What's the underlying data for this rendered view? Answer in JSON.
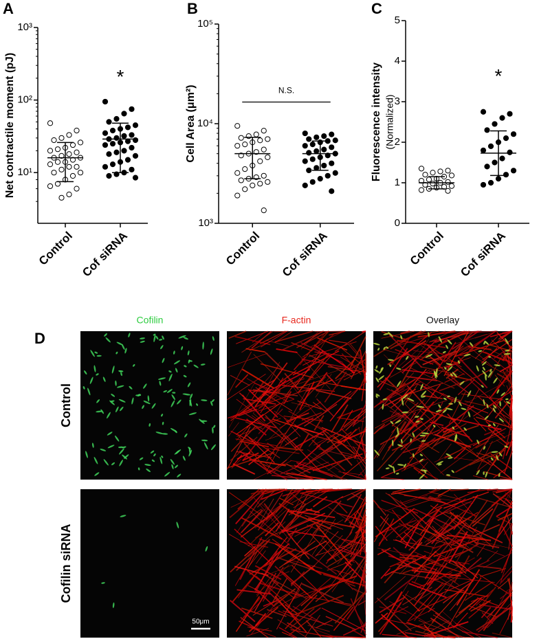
{
  "panels": [
    "A",
    "B",
    "C",
    "D"
  ],
  "chart_data": [
    {
      "type": "dot",
      "ylabel": "Net contractile moment (pJ)",
      "log": true,
      "ylim": [
        2,
        1000
      ],
      "yticks": [
        {
          "value": 10,
          "label": "10¹"
        },
        {
          "value": 100,
          "label": "10²"
        },
        {
          "value": 1000,
          "label": "10³"
        }
      ],
      "categories": [
        "Control",
        "Cof siRNA"
      ],
      "color": "#000000",
      "groups": [
        {
          "filled": false,
          "values": [
            48,
            38,
            33,
            30,
            28,
            26,
            24,
            22,
            21,
            20,
            19,
            18,
            17,
            16,
            16,
            15,
            14,
            14,
            13,
            12,
            12,
            11,
            10,
            10,
            9,
            8,
            7,
            6.5,
            6,
            5,
            4.5
          ],
          "mean": 16,
          "lower": 7.5,
          "upper": 26
        },
        {
          "filled": true,
          "values": [
            95,
            75,
            65,
            55,
            50,
            45,
            42,
            40,
            38,
            35,
            33,
            32,
            30,
            29,
            28,
            27,
            26,
            25,
            24,
            22,
            20,
            19,
            18,
            17,
            15,
            14,
            13,
            12,
            11,
            10,
            9.5,
            9,
            8.5
          ],
          "mean": 29,
          "lower": 10,
          "upper": 48
        }
      ],
      "annotation": {
        "text": "*",
        "category": 1,
        "value": 230
      }
    },
    {
      "type": "dot",
      "ylabel": "Cell Area (μm²)",
      "log": true,
      "ylim": [
        1000,
        100000
      ],
      "yticks": [
        {
          "value": 1000,
          "label": "10³"
        },
        {
          "value": 10000,
          "label": "10⁴"
        },
        {
          "value": 100000,
          "label": "10⁵"
        }
      ],
      "categories": [
        "Control",
        "Cof siRNA"
      ],
      "color": "#000000",
      "groups": [
        {
          "filled": false,
          "values": [
            9500,
            8500,
            7800,
            7500,
            7200,
            7000,
            6800,
            6500,
            6200,
            6000,
            5500,
            5200,
            5000,
            4800,
            4600,
            4200,
            3800,
            3500,
            3200,
            3000,
            2900,
            2800,
            2700,
            2600,
            2500,
            2400,
            2200,
            1900,
            1350
          ],
          "mean": 5000,
          "lower": 2800,
          "upper": 7300
        },
        {
          "filled": true,
          "values": [
            8000,
            7800,
            7500,
            7300,
            7000,
            6800,
            6700,
            6500,
            6200,
            6000,
            5800,
            5500,
            5300,
            5100,
            5000,
            4800,
            4600,
            4400,
            4200,
            4000,
            3800,
            3600,
            3400,
            3200,
            3000,
            2800,
            2600,
            2400,
            2100
          ],
          "mean": 5000,
          "lower": 3400,
          "upper": 6700
        }
      ],
      "bracket": {
        "text": "N.S.",
        "value": 16500
      }
    },
    {
      "type": "dot",
      "ylabel": "Fluorescence intensity",
      "ysublabel": "(Normalized)",
      "log": false,
      "ylim": [
        0,
        5
      ],
      "yticks": [
        0,
        1,
        2,
        3,
        4,
        5
      ],
      "categories": [
        "Control",
        "Cof siRNA"
      ],
      "color": "#000000",
      "groups": [
        {
          "filled": false,
          "values": [
            1.35,
            1.3,
            1.28,
            1.25,
            1.2,
            1.18,
            1.15,
            1.1,
            1.08,
            1.05,
            1.02,
            1.0,
            0.98,
            0.95,
            0.92,
            0.9,
            0.88,
            0.85,
            0.82,
            0.8
          ],
          "mean": 1.0,
          "lower": 0.85,
          "upper": 1.15
        },
        {
          "filled": true,
          "values": [
            2.75,
            2.7,
            2.6,
            2.45,
            2.3,
            2.2,
            2.1,
            2.0,
            1.9,
            1.8,
            1.75,
            1.6,
            1.5,
            1.4,
            1.3,
            1.2,
            1.1,
            1.0,
            0.95
          ],
          "mean": 1.73,
          "lower": 1.18,
          "upper": 2.28
        }
      ],
      "annotation": {
        "text": "*",
        "category": 1,
        "value": 3.7
      }
    }
  ],
  "images": {
    "columns": [
      "Cofilin",
      "F-actin",
      "Overlay"
    ],
    "rows": [
      "Control",
      "Cofilin siRNA"
    ],
    "scale_bar": "50μm"
  }
}
